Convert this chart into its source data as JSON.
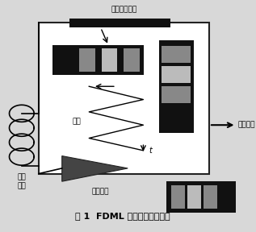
{
  "title": "图 1  FDML 光纤激光器原理图",
  "label_filter": "可调谐滤波器",
  "label_delay_fiber": "延迟\n光纤",
  "label_amplifier": "光放大器",
  "label_wavelength": "波长",
  "label_time": "t",
  "label_output": "激光输出",
  "bg_color": "#d8d8d8",
  "box_color": "#ffffff",
  "box_edge": "#222222",
  "dark_bar": "#111111",
  "gray_bar": "#888888",
  "light_gray": "#bbbbbb"
}
